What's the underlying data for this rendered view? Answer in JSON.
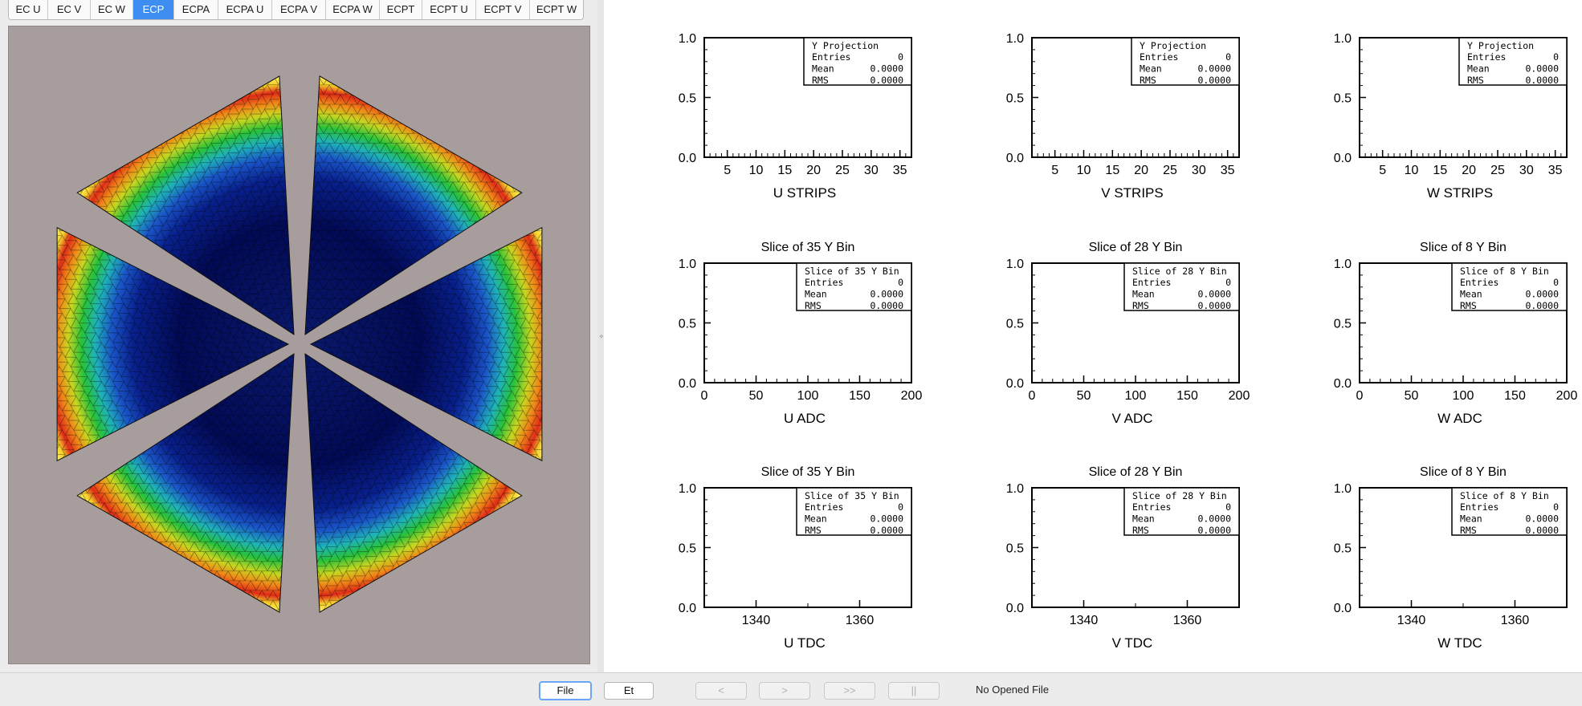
{
  "tabs": [
    {
      "label": "EC U"
    },
    {
      "label": "EC V"
    },
    {
      "label": "EC W"
    },
    {
      "label": "ECP",
      "active": true
    },
    {
      "label": "ECPA"
    },
    {
      "label": "ECPA U"
    },
    {
      "label": "ECPA V"
    },
    {
      "label": "ECPA W"
    },
    {
      "label": "ECPT"
    },
    {
      "label": "ECPT U"
    },
    {
      "label": "ECPT V"
    },
    {
      "label": "ECPT W"
    }
  ],
  "colors": {
    "accent": "#3d8ef0",
    "canvas_bg": "#a69d9c"
  },
  "bottom_bar": {
    "file_label": "File",
    "et_label": "Et",
    "prev_label": "<",
    "next_label": ">",
    "fast_forward_label": ">>",
    "pause_label": "||",
    "status": "No Opened File"
  },
  "chart_data": [
    {
      "type": "histogram",
      "title": "",
      "xlabel": "U STRIPS",
      "ylim": [
        0,
        1
      ],
      "yticks": [
        "0.0",
        "0.5",
        "1.0"
      ],
      "xlim": [
        1,
        37
      ],
      "xticks": [
        "5",
        "10",
        "15",
        "20",
        "25",
        "30",
        "35"
      ],
      "xtick_values": [
        5,
        10,
        15,
        20,
        25,
        30,
        35
      ],
      "minor_step": 1,
      "values": [],
      "stats": {
        "name": "Y Projection",
        "entries": "0",
        "mean": "0.0000",
        "rms": "0.0000"
      }
    },
    {
      "type": "histogram",
      "title": "",
      "xlabel": "V STRIPS",
      "ylim": [
        0,
        1
      ],
      "yticks": [
        "0.0",
        "0.5",
        "1.0"
      ],
      "xlim": [
        1,
        37
      ],
      "xticks": [
        "5",
        "10",
        "15",
        "20",
        "25",
        "30",
        "35"
      ],
      "xtick_values": [
        5,
        10,
        15,
        20,
        25,
        30,
        35
      ],
      "minor_step": 1,
      "values": [],
      "stats": {
        "name": "Y Projection",
        "entries": "0",
        "mean": "0.0000",
        "rms": "0.0000"
      }
    },
    {
      "type": "histogram",
      "title": "",
      "xlabel": "W STRIPS",
      "ylim": [
        0,
        1
      ],
      "yticks": [
        "0.0",
        "0.5",
        "1.0"
      ],
      "xlim": [
        1,
        37
      ],
      "xticks": [
        "5",
        "10",
        "15",
        "20",
        "25",
        "30",
        "35"
      ],
      "xtick_values": [
        5,
        10,
        15,
        20,
        25,
        30,
        35
      ],
      "minor_step": 1,
      "values": [],
      "stats": {
        "name": "Y Projection",
        "entries": "0",
        "mean": "0.0000",
        "rms": "0.0000"
      }
    },
    {
      "type": "histogram",
      "title": "Slice of 35 Y Bin",
      "xlabel": "U ADC",
      "ylim": [
        0,
        1
      ],
      "yticks": [
        "0.0",
        "0.5",
        "1.0"
      ],
      "xlim": [
        0,
        200
      ],
      "xticks": [
        "0",
        "50",
        "100",
        "150",
        "200"
      ],
      "xtick_values": [
        0,
        50,
        100,
        150,
        200
      ],
      "minor_step": 10,
      "values": [],
      "stats": {
        "name": "Slice of 35 Y Bin",
        "entries": "0",
        "mean": "0.0000",
        "rms": "0.0000"
      }
    },
    {
      "type": "histogram",
      "title": "Slice of 28 Y Bin",
      "xlabel": "V ADC",
      "ylim": [
        0,
        1
      ],
      "yticks": [
        "0.0",
        "0.5",
        "1.0"
      ],
      "xlim": [
        0,
        200
      ],
      "xticks": [
        "0",
        "50",
        "100",
        "150",
        "200"
      ],
      "xtick_values": [
        0,
        50,
        100,
        150,
        200
      ],
      "minor_step": 10,
      "values": [],
      "stats": {
        "name": "Slice of 28 Y Bin",
        "entries": "0",
        "mean": "0.0000",
        "rms": "0.0000"
      }
    },
    {
      "type": "histogram",
      "title": "Slice of 8 Y Bin",
      "xlabel": "W ADC",
      "ylim": [
        0,
        1
      ],
      "yticks": [
        "0.0",
        "0.5",
        "1.0"
      ],
      "xlim": [
        0,
        200
      ],
      "xticks": [
        "0",
        "50",
        "100",
        "150",
        "200"
      ],
      "xtick_values": [
        0,
        50,
        100,
        150,
        200
      ],
      "minor_step": 10,
      "values": [],
      "stats": {
        "name": "Slice of 8 Y Bin",
        "entries": "0",
        "mean": "0.0000",
        "rms": "0.0000"
      }
    },
    {
      "type": "histogram",
      "title": "Slice of 35 Y Bin",
      "xlabel": "U TDC",
      "ylim": [
        0,
        1
      ],
      "yticks": [
        "0.0",
        "0.5",
        "1.0"
      ],
      "xlim": [
        1330,
        1370
      ],
      "xticks": [
        "1340",
        "1360"
      ],
      "xtick_values": [
        1340,
        1360
      ],
      "minor_step": 10,
      "values": [],
      "stats": {
        "name": "Slice of 35 Y Bin",
        "entries": "0",
        "mean": "0.0000",
        "rms": "0.0000"
      }
    },
    {
      "type": "histogram",
      "title": "Slice of 28 Y Bin",
      "xlabel": "V TDC",
      "ylim": [
        0,
        1
      ],
      "yticks": [
        "0.0",
        "0.5",
        "1.0"
      ],
      "xlim": [
        1330,
        1370
      ],
      "xticks": [
        "1340",
        "1360"
      ],
      "xtick_values": [
        1340,
        1360
      ],
      "minor_step": 10,
      "values": [],
      "stats": {
        "name": "Slice of 28 Y Bin",
        "entries": "0",
        "mean": "0.0000",
        "rms": "0.0000"
      }
    },
    {
      "type": "histogram",
      "title": "Slice of 8 Y Bin",
      "xlabel": "W TDC",
      "ylim": [
        0,
        1
      ],
      "yticks": [
        "0.0",
        "0.5",
        "1.0"
      ],
      "xlim": [
        1330,
        1370
      ],
      "xticks": [
        "1340",
        "1360"
      ],
      "xtick_values": [
        1340,
        1360
      ],
      "minor_step": 10,
      "values": [],
      "stats": {
        "name": "Slice of 8 Y Bin",
        "entries": "0",
        "mean": "0.0000",
        "rms": "0.0000"
      }
    }
  ]
}
